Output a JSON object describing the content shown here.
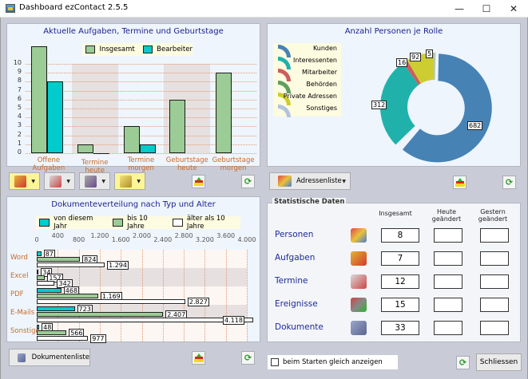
{
  "window": {
    "title": "Dashboard ezContact 2.5.5",
    "minimize": "—",
    "maximize": "☐",
    "close": "✕"
  },
  "tasks_chart": {
    "title": "Aktuelle Aufgaben, Termine und Geburtstage",
    "legend": [
      "Insgesamt",
      "Bearbeiter"
    ]
  },
  "roles_chart": {
    "title": "Anzahl Personen je Rolle",
    "legend": [
      "Kunden",
      "Interessenten",
      "Mitarbeiter",
      "Behörden",
      "Private Adressen",
      "Sonstiges"
    ],
    "labels": {
      "kunden": "682",
      "interessenten": "312",
      "mitarbeiter": "16",
      "private": "92",
      "sonstiges": "5"
    }
  },
  "docs_chart": {
    "title": "Dokumenteverteilung nach Typ und Alter",
    "legend": [
      "von diesem Jahr",
      "bis 10 Jahre",
      "älter als 10 Jahre"
    ],
    "ticks": [
      "0",
      "400",
      "800",
      "1.200",
      "1.600",
      "2.000",
      "2.400",
      "2.800",
      "3.200",
      "3.600",
      "4.000"
    ]
  },
  "chart_data": [
    {
      "type": "bar",
      "title": "Aktuelle Aufgaben, Termine und Geburtstage",
      "categories": [
        "Offene Aufgaben",
        "Termine heute",
        "Termine morgen",
        "Geburtstage heute",
        "Geburtstage morgen"
      ],
      "series": [
        {
          "name": "Insgesamt",
          "values": [
            12,
            1,
            3,
            6,
            9
          ],
          "color": "#9ccc96"
        },
        {
          "name": "Bearbeiter",
          "values": [
            8,
            0,
            1,
            0,
            0
          ],
          "color": "#00cccc"
        }
      ],
      "yticks": [
        "0",
        "1",
        "2",
        "3",
        "4",
        "5",
        "6",
        "7",
        "8",
        "9",
        "10"
      ],
      "ylim": [
        0,
        10
      ]
    },
    {
      "type": "pie",
      "title": "Anzahl Personen je Rolle",
      "categories": [
        "Kunden",
        "Interessenten",
        "Mitarbeiter",
        "Behörden",
        "Private Adressen",
        "Sonstiges"
      ],
      "values": [
        682,
        312,
        16,
        0,
        92,
        5
      ],
      "colors": [
        "#4682b4",
        "#20b2aa",
        "#cd5c5c",
        "#5f9f5f",
        "#cdcd32",
        "#b0c4de"
      ]
    },
    {
      "type": "bar",
      "orientation": "horizontal",
      "title": "Dokumenteverteilung nach Typ und Alter",
      "categories": [
        "Word",
        "Excel",
        "PDF",
        "E-Mails",
        "Sonstige"
      ],
      "series": [
        {
          "name": "von diesem Jahr",
          "values": [
            87,
            34,
            468,
            723,
            48
          ],
          "labels": [
            "87",
            "34",
            "468",
            "723",
            "48"
          ],
          "color": "#00cccc"
        },
        {
          "name": "bis 10 Jahre",
          "values": [
            824,
            157,
            1169,
            2407,
            566
          ],
          "labels": [
            "824",
            "157",
            "1.169",
            "2.407",
            "566"
          ],
          "color": "#9ccc96"
        },
        {
          "name": "älter als 10 Jahre",
          "values": [
            1294,
            342,
            2827,
            4118,
            977
          ],
          "labels": [
            "1.294",
            "342",
            "2.827",
            "4.118",
            "977"
          ],
          "color": "#ffffff"
        }
      ],
      "xlim": [
        0,
        4000
      ]
    }
  ],
  "toolbar_left": {
    "buttons": [
      "tasks-menu",
      "appointments-menu",
      "birthdays-menu",
      "events-menu"
    ]
  },
  "buttons": {
    "adressenliste": "Adressenliste",
    "dokumentenliste": "Dokumentenliste",
    "schliessen": "Schliessen"
  },
  "stats": {
    "title": "Statistische Daten",
    "headers": {
      "insgesamt": "Insgesamt",
      "heute": "Heute geändert",
      "gestern": "Gestern geändert"
    },
    "rows": [
      {
        "label": "Personen",
        "total": "8",
        "today": "",
        "yesterday": ""
      },
      {
        "label": "Aufgaben",
        "total": "7",
        "today": "",
        "yesterday": ""
      },
      {
        "label": "Termine",
        "total": "12",
        "today": "",
        "yesterday": ""
      },
      {
        "label": "Ereignisse",
        "total": "15",
        "today": "",
        "yesterday": ""
      },
      {
        "label": "Dokumente",
        "total": "33",
        "today": "",
        "yesterday": ""
      }
    ]
  },
  "startup_checkbox": {
    "label": "beim Starten gleich anzeigen",
    "checked": false
  }
}
